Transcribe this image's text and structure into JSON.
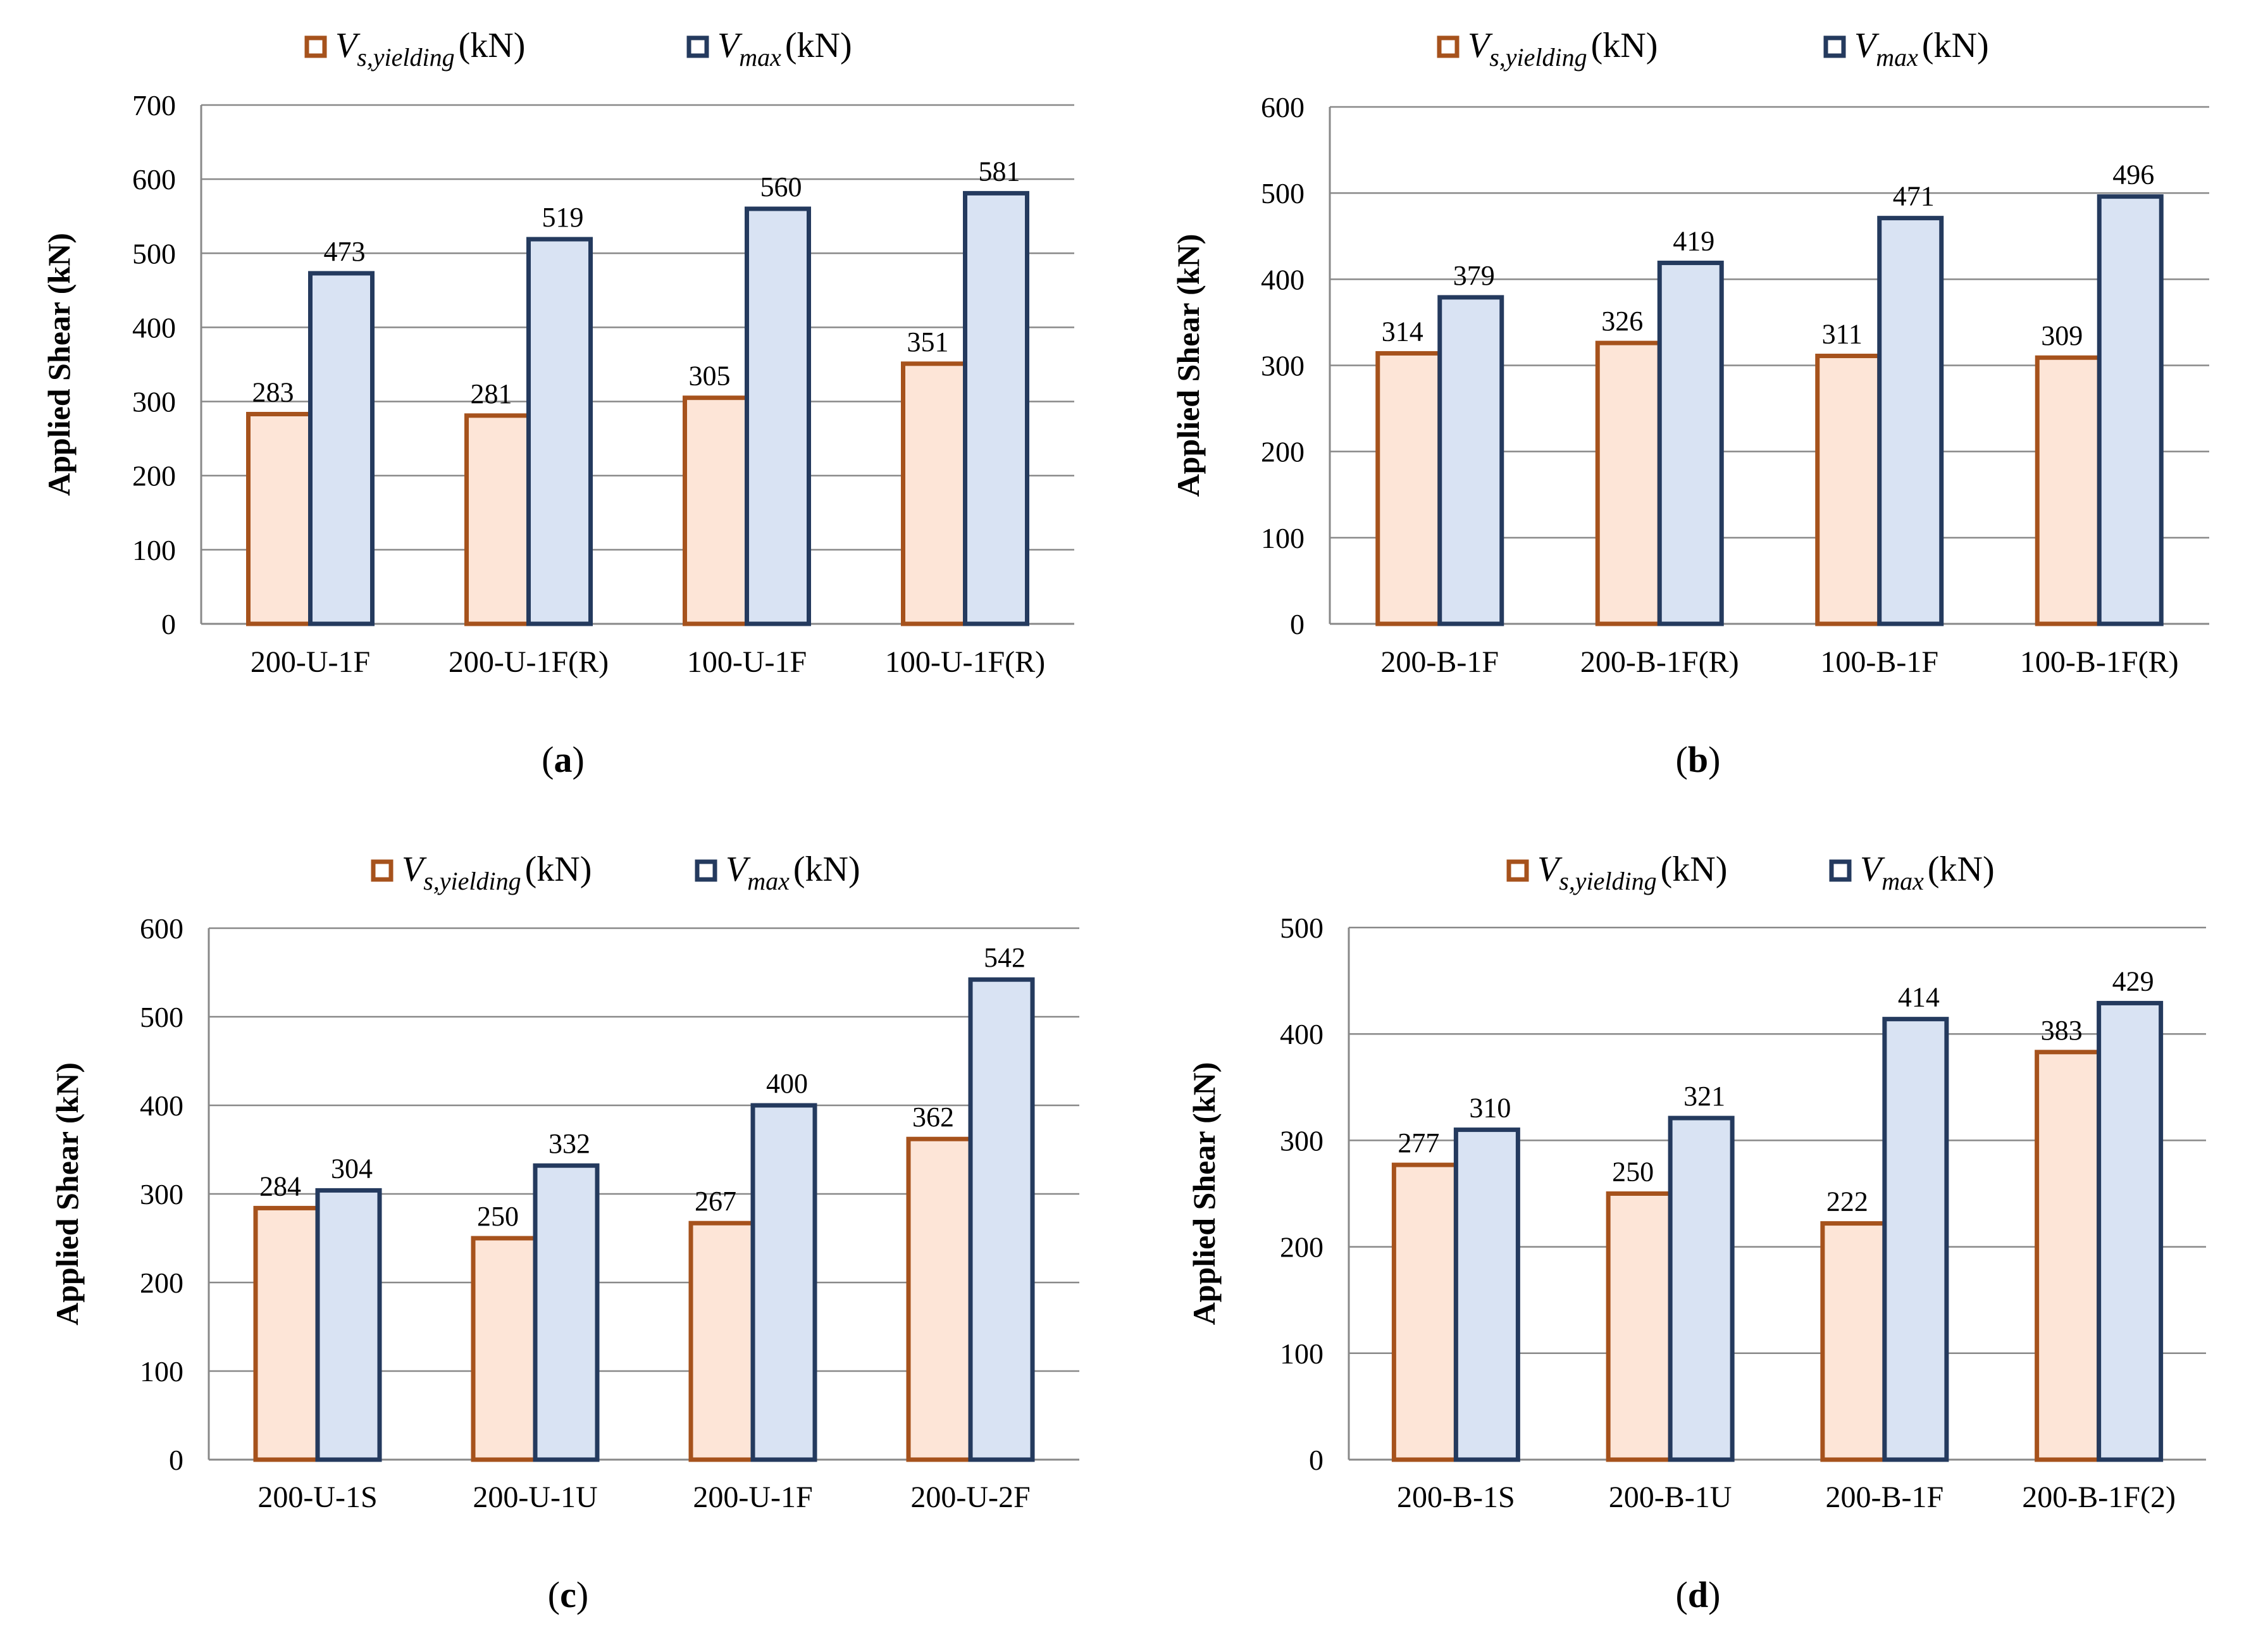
{
  "legend_unit": "(kN)",
  "colors": {
    "s_yield_fill": "#fde5d7",
    "s_yield_stroke": "#a6521c",
    "max_fill": "#d9e3f3",
    "max_stroke": "#243a5e",
    "grid": "#888888"
  },
  "chart_data": [
    {
      "type": "bar",
      "panel": "a",
      "ylabel": "Applied Shear (kN)",
      "ylim": [
        0,
        700
      ],
      "yticks": [
        0,
        100,
        200,
        300,
        400,
        500,
        600,
        700
      ],
      "categories": [
        "200-U-1F",
        "200-U-1F(R)",
        "100-U-1F",
        "100-U-1F(R)"
      ],
      "series": [
        {
          "name": "Vs,yielding (kN)",
          "values": [
            283,
            281,
            305,
            351
          ]
        },
        {
          "name": "Vmax (kN)",
          "values": [
            473,
            519,
            560,
            581
          ]
        }
      ],
      "grid": true,
      "legend": "top"
    },
    {
      "type": "bar",
      "panel": "b",
      "ylabel": "Applied Shear (kN)",
      "ylim": [
        0,
        600
      ],
      "yticks": [
        0,
        100,
        200,
        300,
        400,
        500,
        600
      ],
      "categories": [
        "200-B-1F",
        "200-B-1F(R)",
        "100-B-1F",
        "100-B-1F(R)"
      ],
      "series": [
        {
          "name": "Vs,yielding (kN)",
          "values": [
            314,
            326,
            311,
            309
          ]
        },
        {
          "name": "Vmax (kN)",
          "values": [
            379,
            419,
            471,
            496
          ]
        }
      ],
      "grid": true,
      "legend": "top"
    },
    {
      "type": "bar",
      "panel": "c",
      "ylabel": "Applied Shear (kN)",
      "ylim": [
        0,
        600
      ],
      "yticks": [
        0,
        100,
        200,
        300,
        400,
        500,
        600
      ],
      "categories": [
        "200-U-1S",
        "200-U-1U",
        "200-U-1F",
        "200-U-2F"
      ],
      "series": [
        {
          "name": "Vs,yielding (kN)",
          "values": [
            284,
            250,
            267,
            362
          ]
        },
        {
          "name": "Vmax (kN)",
          "values": [
            304,
            332,
            400,
            542
          ]
        }
      ],
      "grid": true,
      "legend": "top"
    },
    {
      "type": "bar",
      "panel": "d",
      "ylabel": "Applied Shear (kN)",
      "ylim": [
        0,
        500
      ],
      "yticks": [
        0,
        100,
        200,
        300,
        400,
        500
      ],
      "categories": [
        "200-B-1S",
        "200-B-1U",
        "200-B-1F",
        "200-B-1F(2)"
      ],
      "series": [
        {
          "name": "Vs,yielding (kN)",
          "values": [
            277,
            250,
            222,
            383
          ]
        },
        {
          "name": "Vmax (kN)",
          "values": [
            310,
            321,
            414,
            429
          ]
        }
      ],
      "grid": true,
      "legend": "top"
    }
  ]
}
